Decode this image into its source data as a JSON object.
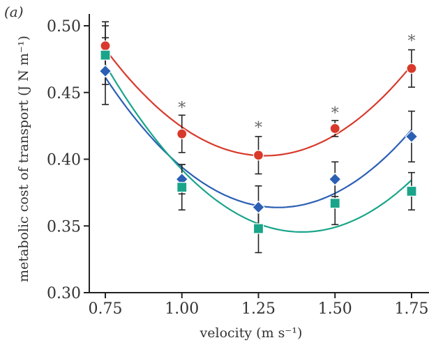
{
  "chart_data": {
    "type": "scatter",
    "panel_label": "(a)",
    "xlabel": "velocity (m s⁻¹)",
    "ylabel": "metabolic cost of transport (J N m⁻¹)",
    "xlim": [
      0.7,
      1.78
    ],
    "ylim": [
      0.3,
      0.505
    ],
    "xticks": [
      0.75,
      1.0,
      1.25,
      1.5,
      1.75
    ],
    "xtick_labels": [
      "0.75",
      "1.00",
      "1.25",
      "1.50",
      "1.75"
    ],
    "yticks": [
      0.3,
      0.35,
      0.4,
      0.45,
      0.5
    ],
    "ytick_labels": [
      "0.30",
      "0.35",
      "0.40",
      "0.45",
      "0.50"
    ],
    "grid": false,
    "series": [
      {
        "marker": "circle",
        "color": "#d8392b",
        "x": [
          0.75,
          1.0,
          1.25,
          1.5,
          1.75
        ],
        "values": [
          0.485,
          0.419,
          0.403,
          0.423,
          0.468
        ],
        "error": [
          0.018,
          0.014,
          0.014,
          0.006,
          0.014
        ],
        "fit": [
          0.0,
          0.0,
          0.0
        ]
      },
      {
        "marker": "diamond",
        "color": "#2b5fb4",
        "x": [
          0.75,
          1.0,
          1.25,
          1.5,
          1.75
        ],
        "values": [
          0.466,
          0.385,
          0.364,
          0.385,
          0.417
        ],
        "error": [
          0.025,
          0.011,
          0.016,
          0.013,
          0.019
        ],
        "fit": [
          0.0,
          0.0,
          0.0
        ]
      },
      {
        "marker": "square",
        "color": "#1aa58a",
        "x": [
          0.75,
          1.0,
          1.25,
          1.5,
          1.75
        ],
        "values": [
          0.478,
          0.379,
          0.348,
          0.367,
          0.376
        ],
        "error": [
          0.022,
          0.017,
          0.018,
          0.016,
          0.014
        ],
        "fit": [
          0.0,
          0.0,
          0.0
        ]
      }
    ],
    "annotations": [
      {
        "text": "*",
        "x": 1.0,
        "y": 0.44
      },
      {
        "text": "*",
        "x": 1.25,
        "y": 0.425
      },
      {
        "text": "*",
        "x": 1.5,
        "y": 0.436
      },
      {
        "text": "*",
        "x": 1.75,
        "y": 0.49
      }
    ]
  }
}
